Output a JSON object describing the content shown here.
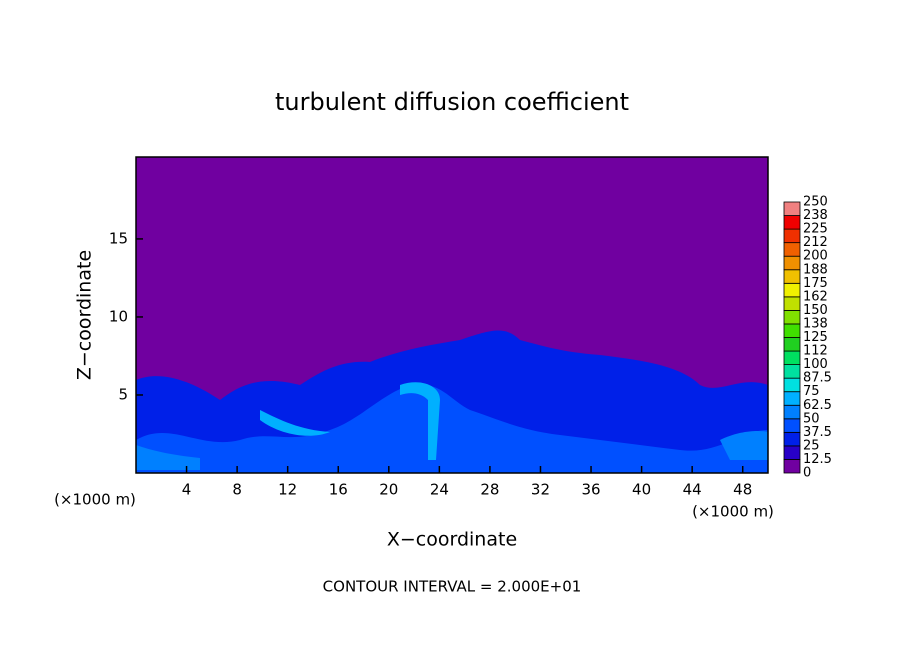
{
  "chart_data": {
    "type": "contour",
    "title": "turbulent diffusion coefficient",
    "x_label": "X−coordinate",
    "y_label": "Z−coordinate",
    "x_unit_left": "(×1000 m)",
    "x_unit_right": "(×1000 m)",
    "note": "CONTOUR INTERVAL = 2.000E+01",
    "xlim": [
      0,
      50
    ],
    "xticks": [
      4,
      8,
      12,
      16,
      20,
      24,
      28,
      32,
      36,
      40,
      44,
      48
    ],
    "ylim": [
      0,
      20.25
    ],
    "yticks": [
      5,
      10,
      15
    ],
    "colorbar": {
      "levels": [
        0,
        12.5,
        25,
        37.5,
        50,
        62.5,
        75,
        87.5,
        100,
        {
          "value": 112.5,
          "label": "112"
        },
        125,
        {
          "value": 137.5,
          "label": "138"
        },
        150,
        {
          "value": 162.5,
          "label": "162"
        },
        175,
        {
          "value": 187.5,
          "label": "188"
        },
        200,
        {
          "value": 212.5,
          "label": "212"
        },
        225,
        {
          "value": 237.5,
          "label": "238"
        },
        250
      ],
      "colors": [
        "#7000a0",
        "#2800c8",
        "#0020e8",
        "#0050ff",
        "#0080ff",
        "#00b0ff",
        "#00e0e0",
        "#00e0a0",
        "#00e060",
        "#20d020",
        "#40e000",
        "#80e000",
        "#c0e000",
        "#f0f000",
        "#f0c000",
        "#f09000",
        "#f06000",
        "#f03000",
        "#f00000",
        "#f08080"
      ]
    }
  }
}
